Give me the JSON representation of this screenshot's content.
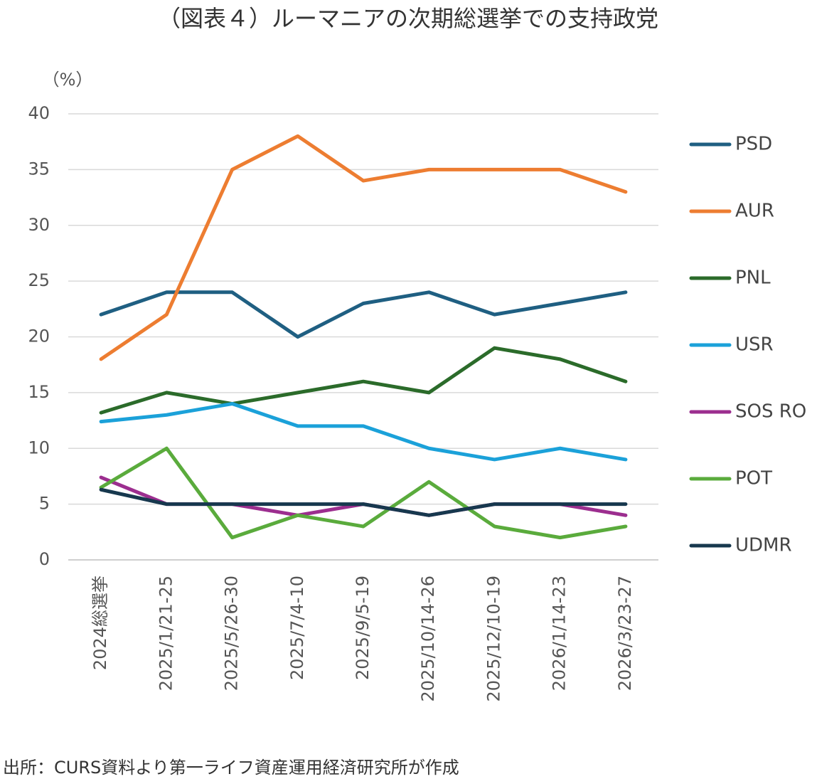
{
  "chart_data": {
    "type": "line",
    "title": "（図表４）ルーマニアの次期総選挙での支持政党",
    "y_label": "（%）",
    "source": "出所：CURS資料より第一ライフ資産運用経済研究所が作成",
    "categories": [
      "2024総選挙",
      "2025/1/21-25",
      "2025/5/26-30",
      "2025/7/4-10",
      "2025/9/5-19",
      "2025/10/14-26",
      "2025/12/10-19",
      "2026/1/14-23",
      "2026/3/23-27"
    ],
    "series": [
      {
        "name": "PSD",
        "color": "#1f5f82",
        "values": [
          22,
          24,
          24,
          20,
          23,
          24,
          22,
          23,
          24
        ]
      },
      {
        "name": "AUR",
        "color": "#ed7d31",
        "values": [
          18,
          22,
          35,
          38,
          34,
          35,
          35,
          35,
          33
        ]
      },
      {
        "name": "PNL",
        "color": "#2b6b2a",
        "values": [
          13.2,
          15,
          14,
          15,
          16,
          15,
          19,
          18,
          16
        ]
      },
      {
        "name": "USR",
        "color": "#1ba1d9",
        "values": [
          12.4,
          13,
          14,
          12,
          12,
          10,
          9,
          10,
          9
        ]
      },
      {
        "name": "SOS RO",
        "color": "#9c2e8f",
        "values": [
          7.4,
          5,
          5,
          4,
          5,
          4,
          5,
          5,
          4
        ]
      },
      {
        "name": "POT",
        "color": "#5aab3c",
        "values": [
          6.5,
          10,
          2,
          4,
          3,
          7,
          3,
          2,
          3
        ]
      },
      {
        "name": "UDMR",
        "color": "#17384e",
        "values": [
          6.3,
          5,
          5,
          5,
          5,
          4,
          5,
          5,
          5
        ]
      }
    ],
    "ylim": [
      0,
      40
    ],
    "yticks": [
      0,
      5,
      10,
      15,
      20,
      25,
      30,
      35,
      40
    ],
    "grid": true,
    "legend": "right"
  }
}
